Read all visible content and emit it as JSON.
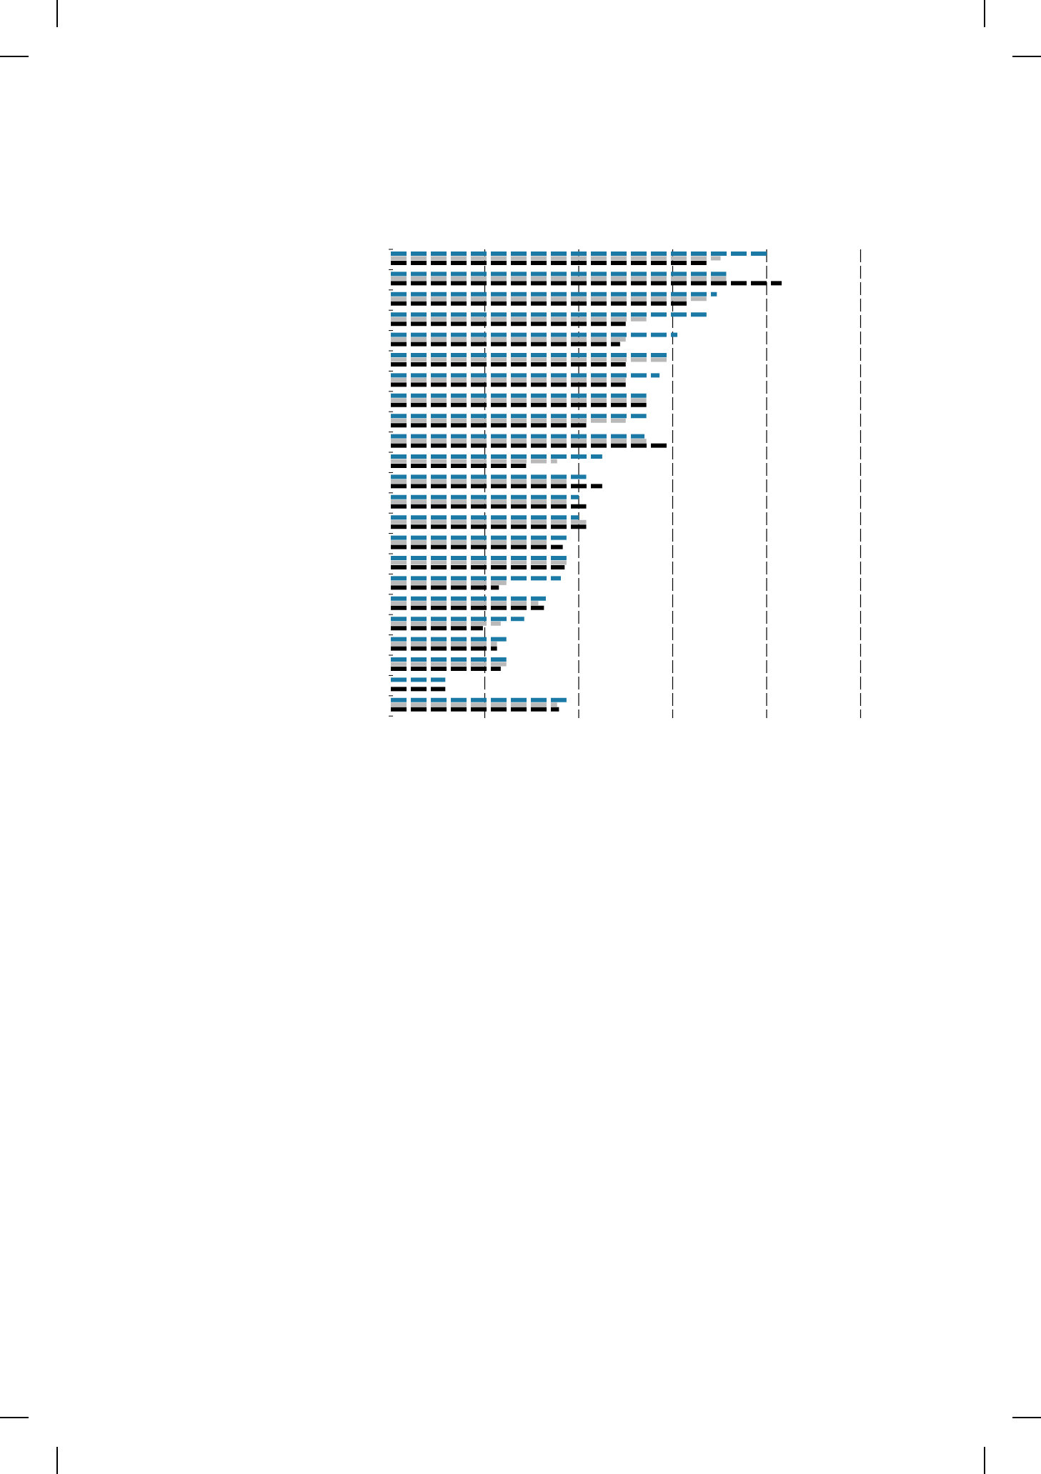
{
  "colors": {
    "series_1": "#1a7aa5",
    "series_2": "#b9b9b9",
    "series_3": "#000000",
    "gridline": "#000000",
    "background": "#ffffff"
  },
  "chart_data": {
    "type": "bar",
    "orientation": "horizontal",
    "bar_style": "dashed",
    "title": "",
    "xlabel": "",
    "ylabel": "",
    "categories": [
      "",
      "",
      "",
      "",
      "",
      "",
      "",
      "",
      "",
      "",
      "",
      "",
      "",
      "",
      "",
      "",
      "",
      "",
      "",
      "",
      "",
      "",
      "",
      ""
    ],
    "xlim": [
      0,
      5
    ],
    "x_gridlines": [
      1,
      2,
      3,
      4,
      5
    ],
    "tick_labels_shown": false,
    "legend": "none",
    "grid": true,
    "series": [
      {
        "color": "#1a7aa5",
        "values": [
          4.0,
          3.57,
          3.47,
          3.36,
          3.05,
          2.94,
          2.86,
          2.72,
          2.72,
          2.7,
          2.25,
          2.08,
          2.0,
          2.0,
          1.87,
          1.87,
          1.81,
          1.65,
          1.42,
          1.23,
          1.23,
          0.58,
          1.87,
          null
        ]
      },
      {
        "color": "#b9b9b9",
        "values": [
          3.51,
          3.57,
          3.36,
          2.72,
          2.5,
          2.94,
          2.5,
          2.72,
          2.5,
          2.72,
          1.77,
          1.87,
          1.87,
          2.08,
          1.7,
          1.87,
          1.23,
          1.57,
          1.17,
          1.13,
          1.23,
          null,
          1.77,
          null
        ]
      },
      {
        "color": "#000000",
        "values": [
          3.36,
          4.16,
          3.15,
          2.5,
          2.44,
          2.5,
          2.5,
          2.72,
          2.08,
          2.94,
          1.44,
          2.25,
          2.08,
          2.08,
          1.83,
          1.85,
          1.15,
          1.63,
          0.98,
          1.13,
          1.17,
          0.58,
          1.79,
          null
        ]
      }
    ]
  }
}
